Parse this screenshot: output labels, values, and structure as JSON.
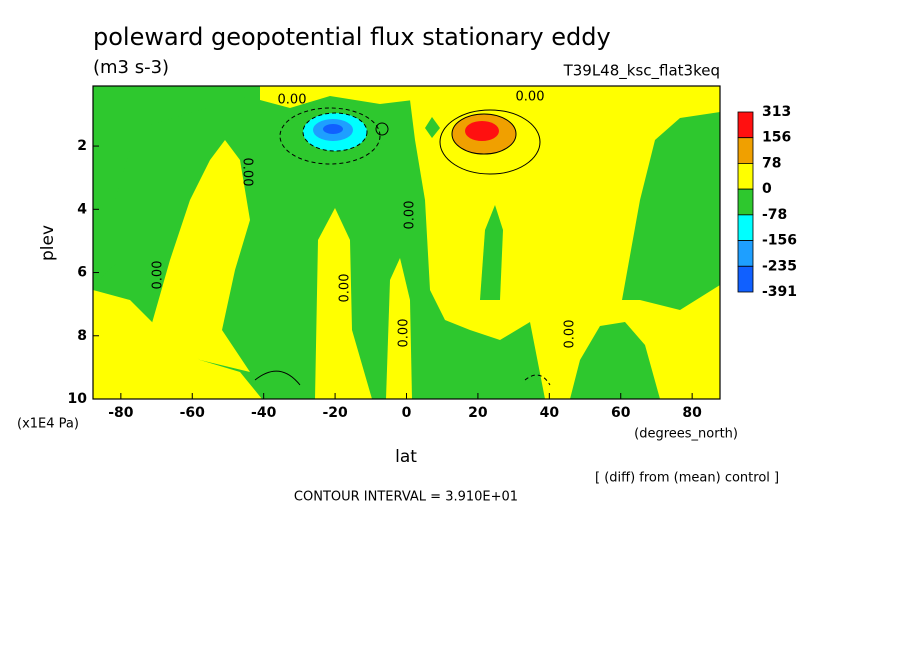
{
  "chart_data": {
    "type": "contour",
    "title": "poleward geopotential flux stationary eddy",
    "subtitle": "(m3 s-3)",
    "run_label": "T39L48_ksc_flat3keq",
    "xlabel": "lat",
    "ylabel": "plev",
    "x_units": "(degrees_north)",
    "y_units": "(x1E4 Pa)",
    "xlim": [
      -87.8,
      87.8
    ],
    "ylim": [
      10,
      0.1
    ],
    "xticks": [
      -80,
      -60,
      -40,
      -20,
      0,
      20,
      40,
      60,
      80
    ],
    "yticks": [
      2,
      4,
      6,
      8,
      10
    ],
    "levels": [
      313,
      156,
      78,
      0,
      -78,
      -156,
      -235,
      -391
    ],
    "level_colors": [
      "#ff1010",
      "#f0a000",
      "#ffff00",
      "#2ec82e",
      "#00ffff",
      "#1e9fff",
      "#1060ff"
    ],
    "contour_labels": [
      "0.00",
      "0.00",
      "0.00",
      "0.00",
      "0.00",
      "0.00",
      "0.00",
      "0.00"
    ],
    "note": "[ (diff) from (mean) control ]",
    "contour_interval": "CONTOUR INTERVAL = 3.910E+01"
  }
}
